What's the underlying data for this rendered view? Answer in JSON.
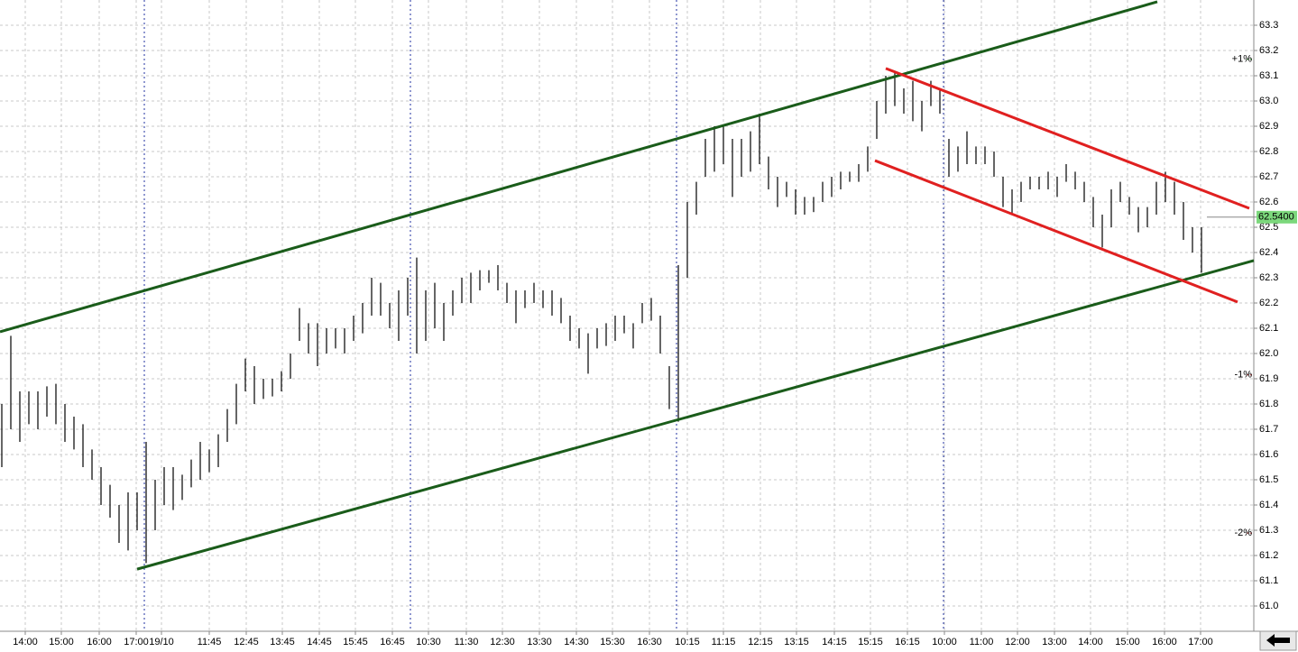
{
  "chart_data": {
    "type": "ohlc",
    "high": [
      61.8,
      62.07,
      61.85,
      61.85,
      61.85,
      61.87,
      61.88,
      61.8,
      61.75,
      61.72,
      61.62,
      61.55,
      61.48,
      61.4,
      61.45,
      61.45,
      61.65,
      61.5,
      61.55,
      61.55,
      61.52,
      61.58,
      61.65,
      61.62,
      61.68,
      61.78,
      61.88,
      61.98,
      61.95,
      61.9,
      61.9,
      61.93,
      62.0,
      62.18,
      62.12,
      62.12,
      62.1,
      62.1,
      62.1,
      62.15,
      62.2,
      62.3,
      62.28,
      62.2,
      62.25,
      62.3,
      62.38,
      62.25,
      62.28,
      62.2,
      62.25,
      62.3,
      62.32,
      62.33,
      62.33,
      62.35,
      62.28,
      62.25,
      62.25,
      62.28,
      62.25,
      62.25,
      62.22,
      62.15,
      62.1,
      62.08,
      62.1,
      62.12,
      62.15,
      62.15,
      62.12,
      62.2,
      62.22,
      62.15,
      61.95,
      62.35,
      62.6,
      62.68,
      62.85,
      62.9,
      62.9,
      62.85,
      62.85,
      62.88,
      62.95,
      62.78,
      62.7,
      62.68,
      62.65,
      62.62,
      62.62,
      62.68,
      62.7,
      62.72,
      62.72,
      62.75,
      62.82,
      63.0,
      63.1,
      63.12,
      63.05,
      63.08,
      63.0,
      63.08,
      63.05,
      62.85,
      62.82,
      62.88,
      62.82,
      62.82,
      62.8,
      62.7,
      62.65,
      62.68,
      62.7,
      62.7,
      62.72,
      62.7,
      62.75,
      62.72,
      62.68,
      62.62,
      62.55,
      62.65,
      62.68,
      62.62,
      62.58,
      62.58,
      62.68,
      62.72,
      62.68,
      62.6,
      62.5,
      62.5
    ],
    "low": [
      61.55,
      61.7,
      61.65,
      61.72,
      61.7,
      61.75,
      61.72,
      61.65,
      61.62,
      61.55,
      61.5,
      61.4,
      61.35,
      61.25,
      61.22,
      61.3,
      61.17,
      61.3,
      61.4,
      61.38,
      61.42,
      61.47,
      61.5,
      61.53,
      61.55,
      61.65,
      61.72,
      61.85,
      61.8,
      61.82,
      61.83,
      61.85,
      61.9,
      62.05,
      62.0,
      61.95,
      62.0,
      62.02,
      62.0,
      62.05,
      62.08,
      62.15,
      62.15,
      62.1,
      62.05,
      62.15,
      62.0,
      62.05,
      62.1,
      62.05,
      62.15,
      62.2,
      62.2,
      62.25,
      62.28,
      62.25,
      62.2,
      62.12,
      62.18,
      62.2,
      62.18,
      62.15,
      62.12,
      62.05,
      62.02,
      61.92,
      62.02,
      62.03,
      62.05,
      62.08,
      62.02,
      62.12,
      62.13,
      62.0,
      61.78,
      61.73,
      62.3,
      62.55,
      62.7,
      62.72,
      62.75,
      62.62,
      62.7,
      62.72,
      62.75,
      62.65,
      62.58,
      62.62,
      62.55,
      62.55,
      62.56,
      62.6,
      62.62,
      62.65,
      62.68,
      62.68,
      62.72,
      62.85,
      62.95,
      62.98,
      62.95,
      62.92,
      62.88,
      62.98,
      62.95,
      62.7,
      62.72,
      62.75,
      62.75,
      62.75,
      62.7,
      62.58,
      62.55,
      62.6,
      62.65,
      62.65,
      62.65,
      62.62,
      62.68,
      62.65,
      62.6,
      62.5,
      62.42,
      62.5,
      62.6,
      62.55,
      62.48,
      62.5,
      62.55,
      62.6,
      62.55,
      62.45,
      62.4,
      62.32
    ],
    "color": "#000000",
    "xlim": [
      -0.2,
      138.8
    ],
    "ylim": [
      60.9,
      63.4
    ],
    "yticks": [
      {
        "value": 61,
        "label": "61.0"
      },
      61.1,
      61.2,
      61.3,
      61.4,
      61.5,
      61.6,
      61.7,
      61.8,
      61.9,
      {
        "value": 62,
        "label": "62.0"
      },
      62.1,
      62.2,
      62.3,
      62.4,
      62.5,
      62.6,
      62.7,
      62.8,
      62.9,
      {
        "value": 63,
        "label": "63.0"
      },
      63.1,
      63.2,
      63.3
    ],
    "xticks": [
      {
        "value": 2.6,
        "label": "14:00"
      },
      {
        "value": 6.6,
        "label": "15:00"
      },
      {
        "value": 10.8,
        "label": "16:00"
      },
      {
        "value": 14.9,
        "label": "17:00"
      },
      {
        "value": 17.7,
        "label": "19/10"
      },
      {
        "value": 23,
        "label": "11:45"
      },
      {
        "value": 27.1,
        "label": "12:45"
      },
      {
        "value": 31.1,
        "label": "13:45"
      },
      {
        "value": 35.2,
        "label": "14:45"
      },
      {
        "value": 39.2,
        "label": "15:45"
      },
      {
        "value": 43.3,
        "label": "16:45"
      },
      {
        "value": 47.3,
        "label": "10:30"
      },
      {
        "value": 51.5,
        "label": "11:30"
      },
      {
        "value": 55.5,
        "label": "12:30"
      },
      {
        "value": 59.6,
        "label": "13:30"
      },
      {
        "value": 63.7,
        "label": "14:30"
      },
      {
        "value": 67.7,
        "label": "15:30"
      },
      {
        "value": 71.8,
        "label": "16:30"
      },
      {
        "value": 76,
        "label": "10:15"
      },
      {
        "value": 80,
        "label": "11:15"
      },
      {
        "value": 84.1,
        "label": "12:15"
      },
      {
        "value": 88.1,
        "label": "13:15"
      },
      {
        "value": 92.3,
        "label": "14:15"
      },
      {
        "value": 96.3,
        "label": "15:15"
      },
      {
        "value": 100.4,
        "label": "16:15"
      },
      {
        "value": 104.5,
        "label": "10:00"
      },
      {
        "value": 108.6,
        "label": "11:00"
      },
      {
        "value": 112.6,
        "label": "12:00"
      },
      {
        "value": 116.7,
        "label": "13:00"
      },
      {
        "value": 120.7,
        "label": "14:00"
      },
      {
        "value": 124.8,
        "label": "15:00"
      },
      {
        "value": 128.9,
        "label": "16:00"
      },
      {
        "value": 132.9,
        "label": "17:00"
      }
    ],
    "session_breaks": [
      15.8,
      45.3,
      74.8,
      104.4
    ],
    "trend_lines": [
      {
        "color": "#1a5c1a",
        "x": [
          -0.2,
          128.1
        ],
        "y": [
          62.086,
          63.393
        ]
      },
      {
        "color": "#1a5c1a",
        "x": [
          15.0,
          138.8
        ],
        "y": [
          61.146,
          62.368
        ]
      },
      {
        "color": "#e02020",
        "x": [
          98.0,
          138.3
        ],
        "y": [
          63.129,
          62.575
        ]
      },
      {
        "color": "#e02020",
        "x": [
          96.8,
          137.0
        ],
        "y": [
          62.764,
          62.204
        ]
      }
    ],
    "pct_markers": [
      {
        "value": 63.165,
        "label": "+1%",
        "color": "#1a8a1a"
      },
      {
        "value": 61.915,
        "label": "-1%",
        "color": "#b02020"
      },
      {
        "value": 61.289,
        "label": "-2%",
        "color": "#b02020"
      }
    ],
    "last_price": {
      "value": 62.54,
      "label": "62.5400",
      "color": "#7cd87c"
    },
    "grid": true
  }
}
